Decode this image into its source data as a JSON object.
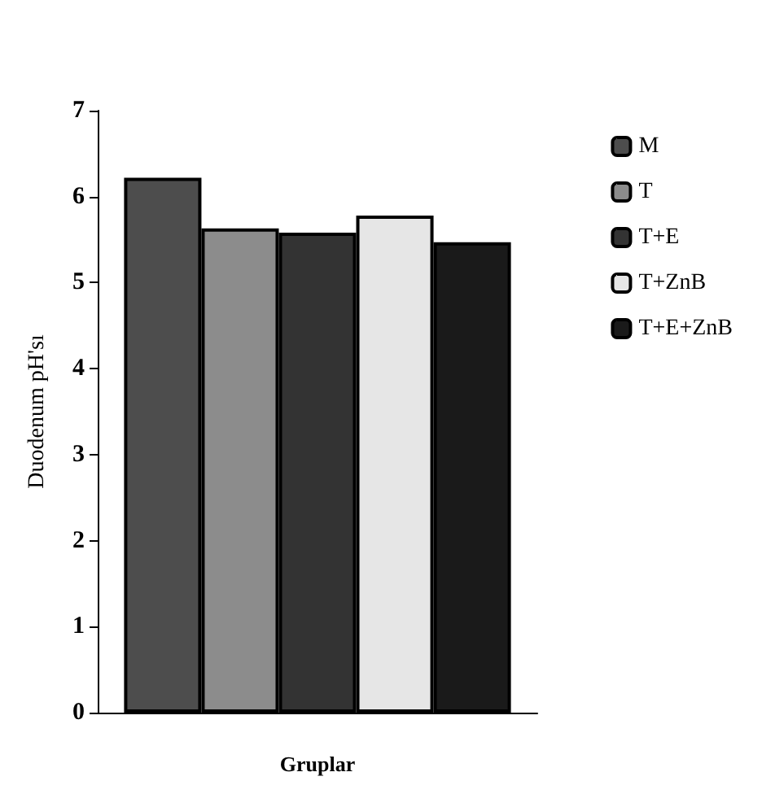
{
  "chart_data": {
    "type": "bar",
    "xlabel": "Gruplar",
    "ylabel": "Duodenum pH'sı",
    "categories": [
      null
    ],
    "series": [
      {
        "name": "M",
        "color": "#4d4d4d",
        "values": [
          6.22
        ]
      },
      {
        "name": "T",
        "color": "#8c8c8c",
        "values": [
          5.63
        ]
      },
      {
        "name": "T+E",
        "color": "#333333",
        "values": [
          5.58
        ]
      },
      {
        "name": "T+ZnB",
        "color": "#e6e6e6",
        "values": [
          5.78
        ]
      },
      {
        "name": "T+E+ZnB",
        "color": "#1a1a1a",
        "values": [
          5.47
        ]
      }
    ],
    "ylim": [
      0,
      7
    ],
    "yticks": [
      0,
      1,
      2,
      3,
      4,
      5,
      6,
      7
    ],
    "grid": false,
    "legend": "right"
  }
}
